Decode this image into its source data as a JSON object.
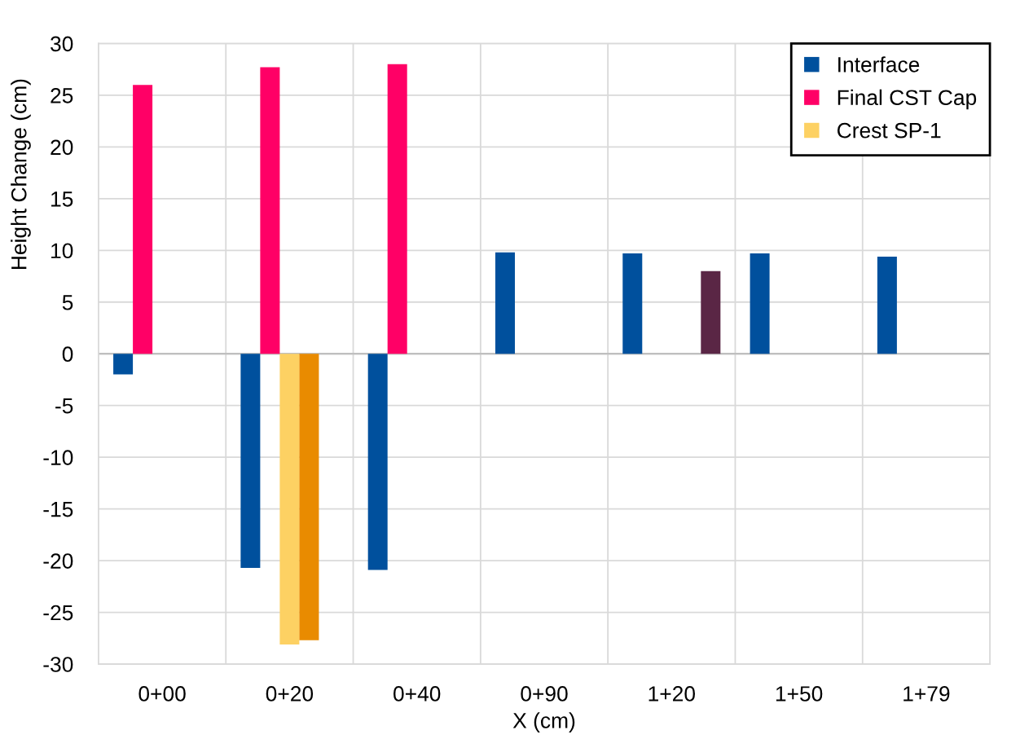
{
  "chart_data": {
    "type": "bar",
    "xlabel": "X (cm)",
    "ylabel": "Height Change (cm)",
    "categories": [
      "0+00",
      "0+20",
      "0+40",
      "0+90",
      "1+20",
      "1+50",
      "1+79"
    ],
    "series": [
      {
        "name": "Interface",
        "color": "#00509d",
        "values": [
          -2.0,
          -20.7,
          -20.9,
          9.8,
          9.7,
          9.7,
          9.4
        ]
      },
      {
        "name": "Final CST Cap",
        "color": "#ff0066",
        "values": [
          26.0,
          27.7,
          28.0,
          null,
          null,
          null,
          null
        ]
      },
      {
        "name": "Crest SP-1",
        "color": "#fdd163",
        "values": [
          null,
          -28.1,
          null,
          null,
          null,
          null,
          null
        ]
      },
      {
        "color": "#e98b00",
        "values": [
          null,
          -27.7,
          null,
          null,
          null,
          null,
          null
        ]
      },
      {
        "color": "#5a2645",
        "values": [
          null,
          null,
          null,
          null,
          8.0,
          null,
          null
        ]
      }
    ],
    "ylim": [
      -30,
      30
    ],
    "yticks": [
      -30,
      -25,
      -20,
      -15,
      -10,
      -5,
      0,
      5,
      10,
      15,
      20,
      25,
      30
    ],
    "grid": true,
    "legend": "top right"
  }
}
